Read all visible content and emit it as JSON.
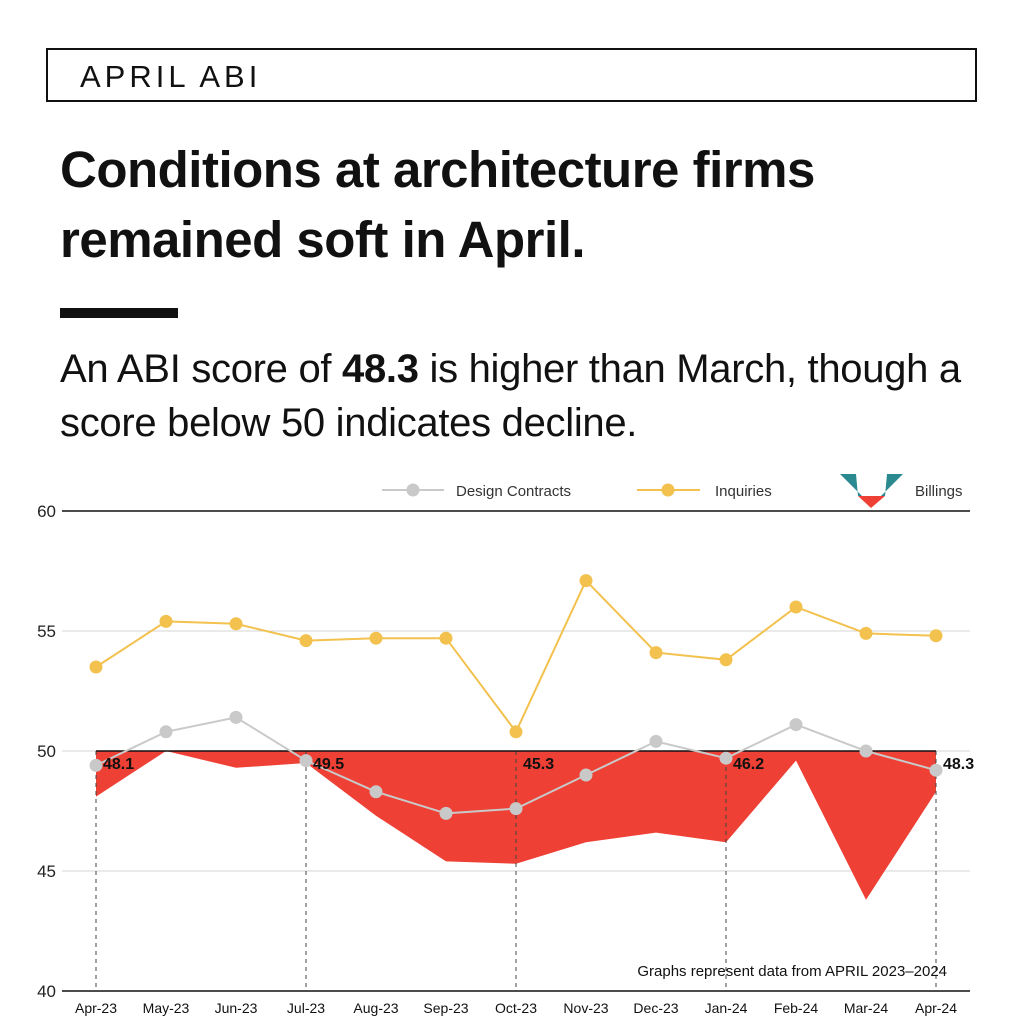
{
  "header": {
    "label": "APRIL ABI"
  },
  "headline": {
    "text": "Conditions at architecture firms remained soft in April."
  },
  "subhead": {
    "prefix": "An ABI score of ",
    "score": "48.3",
    "suffix": " is higher than March, though a score below 50 indicates decline."
  },
  "colors": {
    "design_contracts": "#c9c9c9",
    "inquiries": "#f2c14e",
    "billings": "#ee4035",
    "teal": "#2a8a8f",
    "axis": "#111111",
    "grid": "#d4d4d4"
  },
  "chart_data": {
    "type": "line",
    "categories": [
      "Apr-23",
      "May-23",
      "Jun-23",
      "Jul-23",
      "Aug-23",
      "Sep-23",
      "Oct-23",
      "Nov-23",
      "Dec-23",
      "Jan-24",
      "Feb-24",
      "Mar-24",
      "Apr-24"
    ],
    "ylim": [
      40,
      60
    ],
    "yticks": [
      40,
      45,
      50,
      55,
      60
    ],
    "grid": true,
    "legend_position": "top-right",
    "series": [
      {
        "name": "Design Contracts",
        "kind": "line",
        "values": [
          49.4,
          50.8,
          51.4,
          49.6,
          48.3,
          47.4,
          47.6,
          49.0,
          50.4,
          49.7,
          51.1,
          50.0,
          49.2
        ]
      },
      {
        "name": "Inquiries",
        "kind": "line",
        "values": [
          53.5,
          55.4,
          55.3,
          54.6,
          54.7,
          54.7,
          50.8,
          57.1,
          54.1,
          53.8,
          56.0,
          54.9,
          54.8
        ]
      },
      {
        "name": "Billings",
        "kind": "area-below-50",
        "values": [
          48.1,
          50.0,
          49.3,
          49.5,
          47.3,
          45.4,
          45.3,
          46.2,
          46.6,
          46.2,
          49.6,
          43.8,
          48.3
        ]
      }
    ],
    "callouts": [
      {
        "index": 0,
        "text": "48.1"
      },
      {
        "index": 3,
        "text": "49.5"
      },
      {
        "index": 6,
        "text": "45.3"
      },
      {
        "index": 9,
        "text": "46.2"
      },
      {
        "index": 12,
        "text": "48.3"
      }
    ],
    "note": "Graphs represent data from APRIL 2023–2024"
  }
}
